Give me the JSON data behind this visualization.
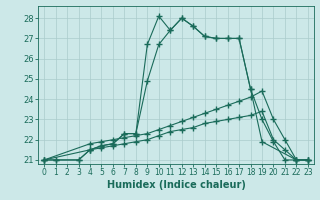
{
  "xlabel": "Humidex (Indice chaleur)",
  "background_color": "#cce8e8",
  "grid_color": "#aacccc",
  "line_color": "#1a6b5a",
  "xlim": [
    -0.5,
    23.5
  ],
  "ylim": [
    20.8,
    28.6
  ],
  "xticks": [
    0,
    1,
    2,
    3,
    4,
    5,
    6,
    7,
    8,
    9,
    10,
    11,
    12,
    13,
    14,
    15,
    16,
    17,
    18,
    19,
    20,
    21,
    22,
    23
  ],
  "yticks": [
    21,
    22,
    23,
    24,
    25,
    26,
    27,
    28
  ],
  "series": [
    {
      "x": [
        0,
        1,
        3,
        4,
        5,
        6,
        7,
        8,
        9,
        10,
        11,
        12,
        13,
        14,
        15,
        16,
        17,
        18,
        19,
        22,
        23
      ],
      "y": [
        21,
        21,
        21,
        21.5,
        21.7,
        21.8,
        22.3,
        22.3,
        26.7,
        28.1,
        27.4,
        28.0,
        27.6,
        27.1,
        27.0,
        27.0,
        27.0,
        24.5,
        21.9,
        21.0,
        21.0
      ]
    },
    {
      "x": [
        0,
        1,
        3,
        4,
        5,
        6,
        7,
        8,
        9,
        10,
        11,
        12,
        13,
        14,
        15,
        16,
        17,
        18,
        19,
        20,
        21,
        22,
        23
      ],
      "y": [
        21,
        21,
        21,
        21.5,
        21.7,
        21.8,
        22.3,
        22.3,
        24.9,
        26.7,
        27.4,
        28.0,
        27.6,
        27.1,
        27.0,
        27.0,
        27.0,
        24.5,
        23.0,
        21.9,
        21.0,
        21.0,
        21.0
      ]
    },
    {
      "x": [
        0,
        4,
        5,
        6,
        7,
        8,
        9,
        10,
        11,
        12,
        13,
        14,
        15,
        16,
        17,
        18,
        19,
        20,
        21,
        22,
        23
      ],
      "y": [
        21,
        21.8,
        21.9,
        22.0,
        22.1,
        22.2,
        22.3,
        22.5,
        22.7,
        22.9,
        23.1,
        23.3,
        23.5,
        23.7,
        23.9,
        24.1,
        24.4,
        23.0,
        22.0,
        21.0,
        21.0
      ]
    },
    {
      "x": [
        0,
        4,
        5,
        6,
        7,
        8,
        9,
        10,
        11,
        12,
        13,
        14,
        15,
        16,
        17,
        18,
        19,
        20,
        21,
        22,
        23
      ],
      "y": [
        21,
        21.5,
        21.6,
        21.7,
        21.8,
        21.9,
        22.0,
        22.2,
        22.4,
        22.5,
        22.6,
        22.8,
        22.9,
        23.0,
        23.1,
        23.2,
        23.4,
        22.0,
        21.5,
        21.0,
        21.0
      ]
    }
  ]
}
